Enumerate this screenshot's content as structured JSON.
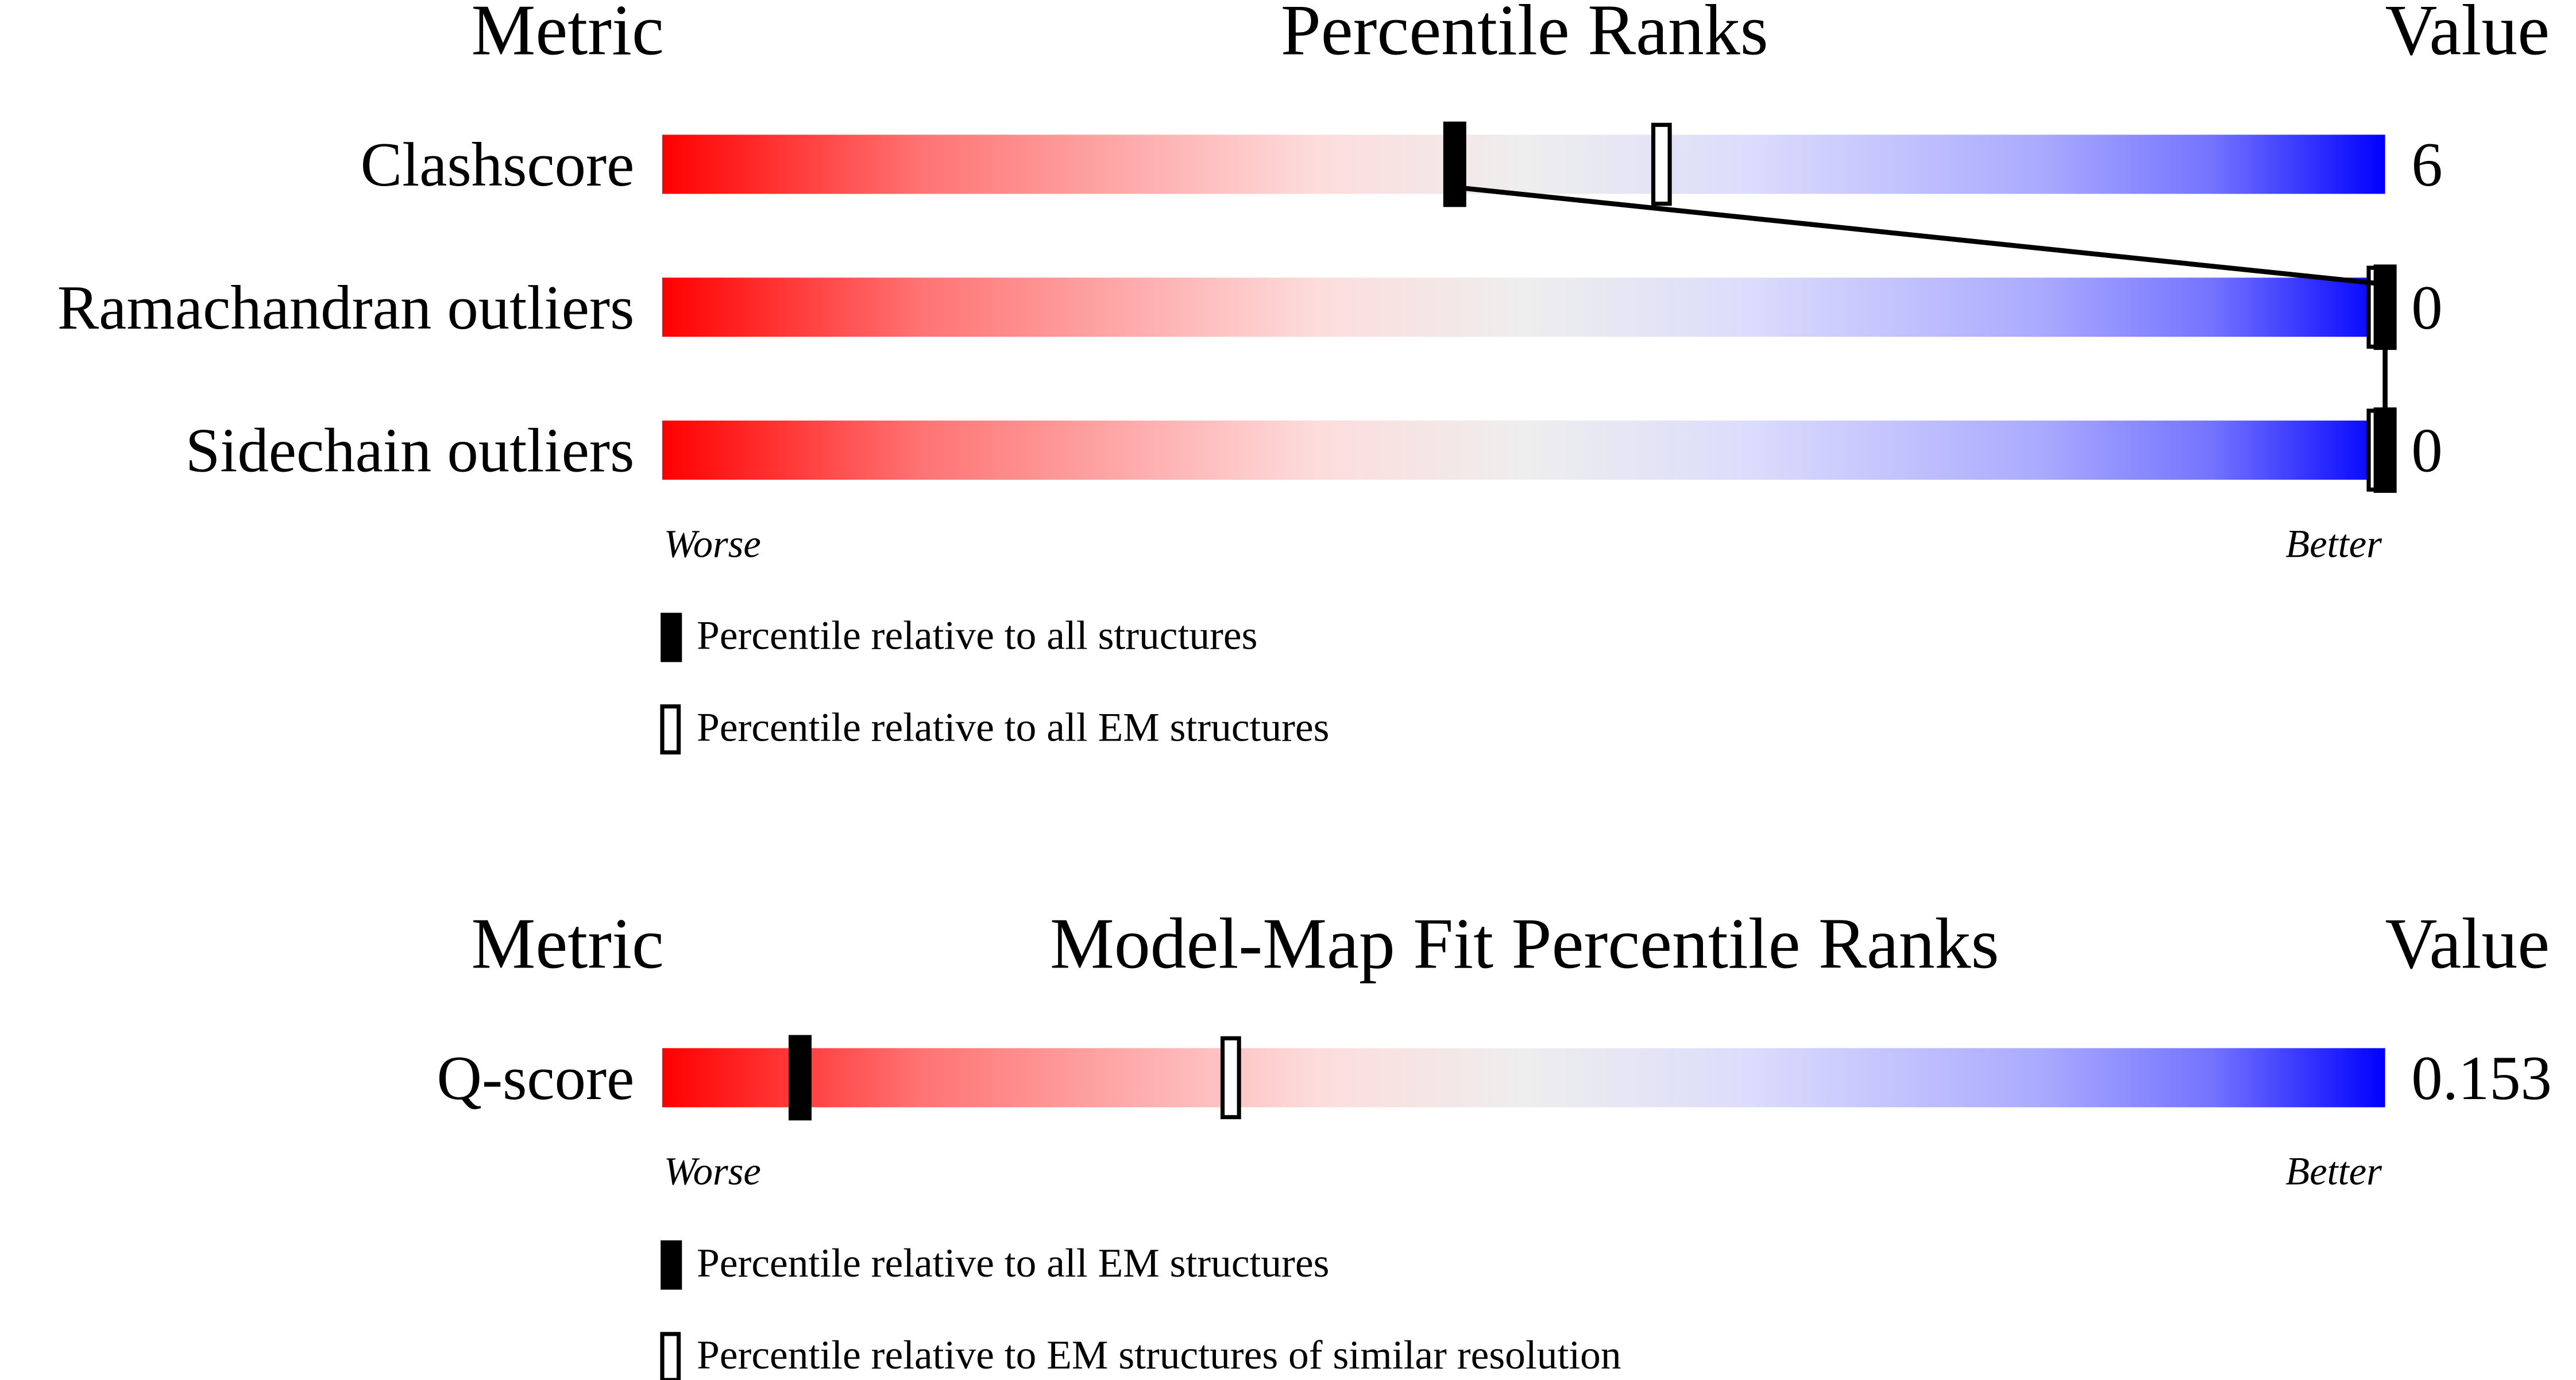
{
  "chart_data": [
    {
      "type": "bar",
      "title": "Percentile Ranks",
      "column_headers": {
        "metric": "Metric",
        "value": "Value"
      },
      "scale_labels": {
        "low": "Worse",
        "high": "Better"
      },
      "xlim": [
        0,
        100
      ],
      "gradient_colors": [
        "#ff0000",
        "#eeeeee",
        "#0000ff"
      ],
      "metrics": [
        {
          "name": "Clashscore",
          "value": "6",
          "percentile_all": 46,
          "percentile_em": 58
        },
        {
          "name": "Ramachandran outliers",
          "value": "0",
          "percentile_all": 100,
          "percentile_em": 100
        },
        {
          "name": "Sidechain outliers",
          "value": "0",
          "percentile_all": 100,
          "percentile_em": 100
        }
      ],
      "legend": [
        {
          "marker": "filled",
          "label": "Percentile relative to all structures"
        },
        {
          "marker": "open",
          "label": "Percentile relative to all EM structures"
        }
      ],
      "connect_filled_markers": true
    },
    {
      "type": "bar",
      "title": "Model-Map Fit Percentile Ranks",
      "column_headers": {
        "metric": "Metric",
        "value": "Value"
      },
      "scale_labels": {
        "low": "Worse",
        "high": "Better"
      },
      "xlim": [
        0,
        100
      ],
      "gradient_colors": [
        "#ff0000",
        "#eeeeee",
        "#0000ff"
      ],
      "metrics": [
        {
          "name": "Q-score",
          "value": "0.153",
          "percentile_all": 8,
          "percentile_em": 33
        }
      ],
      "legend": [
        {
          "marker": "filled",
          "label": "Percentile relative to all EM structures"
        },
        {
          "marker": "open",
          "label": "Percentile relative to EM structures of similar resolution"
        }
      ],
      "connect_filled_markers": false
    }
  ]
}
